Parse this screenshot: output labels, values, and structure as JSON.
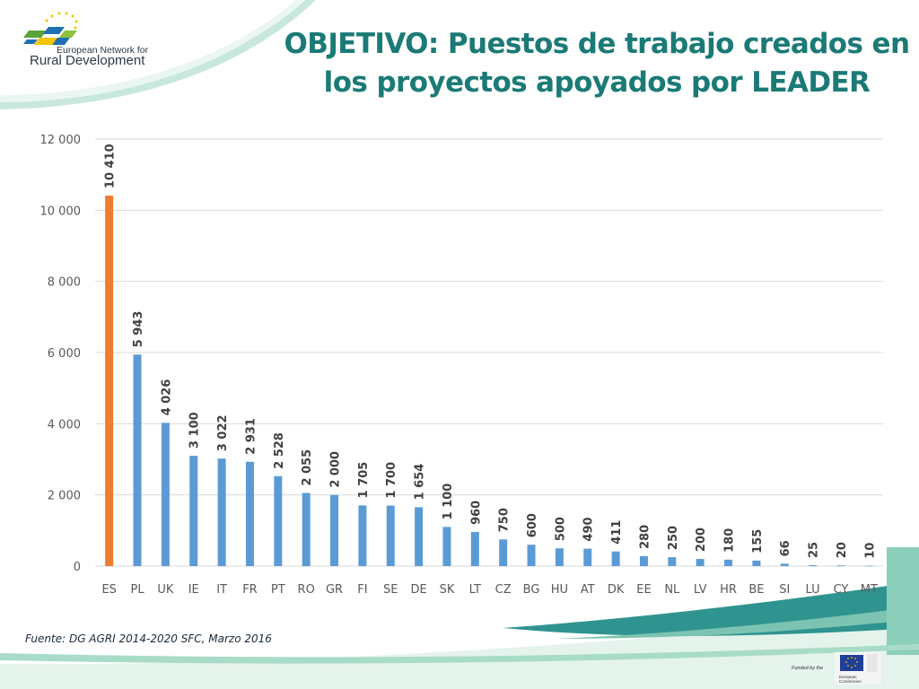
{
  "logo": {
    "line1": "European Network for",
    "line2": "Rural Development"
  },
  "title": {
    "line1": "OBJETIVO: Puestos de trabajo creados en",
    "line2": "los proyectos apoyados por LEADER"
  },
  "chart_data": {
    "type": "bar",
    "title": "OBJETIVO: Puestos de trabajo creados en los proyectos apoyados por LEADER",
    "xlabel": "",
    "ylabel": "",
    "ylim": [
      0,
      12000
    ],
    "yticks": [
      {
        "value": 0,
        "label": "0"
      },
      {
        "value": 2000,
        "label": "2 000"
      },
      {
        "value": 4000,
        "label": "4 000"
      },
      {
        "value": 6000,
        "label": "6 000"
      },
      {
        "value": 8000,
        "label": "8 000"
      },
      {
        "value": 10000,
        "label": "10 000"
      },
      {
        "value": 12000,
        "label": "12 000"
      }
    ],
    "grid": true,
    "categories": [
      "ES",
      "PL",
      "UK",
      "IE",
      "IT",
      "FR",
      "PT",
      "RO",
      "GR",
      "FI",
      "SE",
      "DE",
      "SK",
      "LT",
      "CZ",
      "BG",
      "HU",
      "AT",
      "DK",
      "EE",
      "NL",
      "LV",
      "HR",
      "BE",
      "SI",
      "LU",
      "CY",
      "MT"
    ],
    "values": [
      10410,
      5943,
      4026,
      3100,
      3022,
      2931,
      2528,
      2055,
      2000,
      1705,
      1700,
      1654,
      1100,
      960,
      750,
      600,
      500,
      490,
      411,
      280,
      250,
      200,
      180,
      155,
      66,
      25,
      20,
      10
    ],
    "value_labels": [
      "10 410",
      "5 943",
      "4 026",
      "3 100",
      "3 022",
      "2 931",
      "2 528",
      "2 055",
      "2 000",
      "1 705",
      "1 700",
      "1 654",
      "1 100",
      "960",
      "750",
      "600",
      "500",
      "490",
      "411",
      "280",
      "250",
      "200",
      "180",
      "155",
      "66",
      "25",
      "20",
      "10"
    ],
    "highlight_category": "ES",
    "colors": {
      "default_bar": "#5b9bd5",
      "highlight_bar": "#ed7d31",
      "gridline": "#d9d9d9",
      "axis_text": "#595959",
      "label_text": "#404040"
    }
  },
  "footer": {
    "source": "Fuente: DG AGRI 2014-2020 SFC, Marzo 2016",
    "funded_by": "Funded by the",
    "eu_caption_line1": "European",
    "eu_caption_line2": "Commission"
  },
  "theme": {
    "title_color": "#1b7a76",
    "teal_dark": "#1f8a87",
    "teal_light": "#a9dcc8"
  }
}
